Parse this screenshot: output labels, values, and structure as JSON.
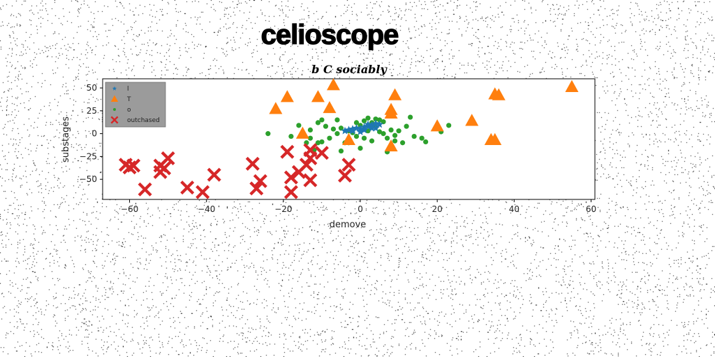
{
  "chart_data": {
    "type": "scatter",
    "title": "celioscope",
    "subtitle": "b C sociably",
    "xlabel": "demove",
    "ylabel": "substages",
    "xlim": [
      -67,
      61
    ],
    "ylim": [
      -72,
      60
    ],
    "x_ticks": [
      -60,
      -40,
      -20,
      0,
      20,
      40,
      60
    ],
    "y_ticks": [
      -50,
      -25,
      0,
      25,
      50
    ],
    "x_tick_labels": [
      "−60",
      "−40",
      "−20",
      "0",
      "20",
      "40",
      "60"
    ],
    "y_tick_labels": [
      "−50",
      "−25",
      "0",
      "25",
      "50"
    ],
    "grid": false,
    "legend_position": "top-left",
    "series": [
      {
        "name": "l",
        "marker": "star",
        "color": "#1f77b4",
        "points": [
          [
            -4,
            3
          ],
          [
            -3,
            4
          ],
          [
            -2,
            5
          ],
          [
            -1,
            6
          ],
          [
            0,
            5
          ],
          [
            1,
            7
          ],
          [
            2,
            8
          ],
          [
            3,
            9
          ],
          [
            4,
            11
          ],
          [
            5,
            10
          ],
          [
            -2,
            3
          ],
          [
            1,
            4
          ],
          [
            2,
            10
          ],
          [
            3,
            6
          ],
          [
            0,
            2
          ],
          [
            4,
            6
          ]
        ]
      },
      {
        "name": "T",
        "marker": "triangle",
        "color": "#ff7f0e",
        "points": [
          [
            -19,
            40
          ],
          [
            -11,
            40
          ],
          [
            -7,
            53
          ],
          [
            9,
            42
          ],
          [
            35,
            43
          ],
          [
            36,
            42
          ],
          [
            55,
            51
          ],
          [
            -22,
            27
          ],
          [
            -8,
            28
          ],
          [
            8,
            26
          ],
          [
            8,
            22
          ],
          [
            -15,
            0
          ],
          [
            -3,
            -7
          ],
          [
            8,
            -14
          ],
          [
            20,
            8
          ],
          [
            29,
            14
          ],
          [
            34,
            -7
          ],
          [
            35,
            -7
          ]
        ]
      },
      {
        "name": "o",
        "marker": "circle",
        "color": "#2ca02c",
        "points": [
          [
            -24,
            0
          ],
          [
            -16,
            9
          ],
          [
            -13,
            4
          ],
          [
            -11,
            12
          ],
          [
            -10,
            15
          ],
          [
            -9,
            8
          ],
          [
            -7,
            5
          ],
          [
            -6,
            15
          ],
          [
            -5,
            6
          ],
          [
            -3,
            3
          ],
          [
            -2,
            1
          ],
          [
            -1,
            -3
          ],
          [
            0,
            9
          ],
          [
            1,
            -5
          ],
          [
            2,
            3
          ],
          [
            3,
            12
          ],
          [
            4,
            7
          ],
          [
            5,
            2
          ],
          [
            6,
            0
          ],
          [
            7,
            -5
          ],
          [
            8,
            4
          ],
          [
            9,
            -8
          ],
          [
            10,
            3
          ],
          [
            12,
            8
          ],
          [
            13,
            18
          ],
          [
            -4,
            -10
          ],
          [
            -8,
            -5
          ],
          [
            -12,
            -18
          ],
          [
            -14,
            -10
          ],
          [
            -6,
            0
          ],
          [
            0,
            -16
          ],
          [
            2,
            17
          ],
          [
            4,
            16
          ],
          [
            6,
            13
          ],
          [
            7,
            -20
          ],
          [
            9,
            -2
          ],
          [
            11,
            -10
          ],
          [
            14,
            -3
          ],
          [
            16,
            -5
          ],
          [
            17,
            -9
          ],
          [
            21,
            2
          ],
          [
            23,
            9
          ],
          [
            -3,
            -10
          ],
          [
            -1,
            12
          ],
          [
            1,
            14
          ],
          [
            3,
            -8
          ],
          [
            5,
            15
          ],
          [
            -10,
            -9
          ],
          [
            -11,
            -10
          ],
          [
            -13,
            -5
          ],
          [
            -18,
            -3
          ],
          [
            -5,
            -19
          ]
        ]
      },
      {
        "name": "outchased",
        "marker": "x",
        "color": "#d62728",
        "points": [
          [
            -61,
            -34
          ],
          [
            -60,
            -37
          ],
          [
            -59,
            -35
          ],
          [
            -56,
            -61
          ],
          [
            -52,
            -35
          ],
          [
            -52,
            -42
          ],
          [
            -51,
            -38
          ],
          [
            -50,
            -27
          ],
          [
            -45,
            -59
          ],
          [
            -41,
            -64
          ],
          [
            -38,
            -45
          ],
          [
            -28,
            -33
          ],
          [
            -27,
            -60
          ],
          [
            -26,
            -52
          ],
          [
            -19,
            -20
          ],
          [
            -18,
            -48
          ],
          [
            -18,
            -64
          ],
          [
            -16,
            -42
          ],
          [
            -14,
            -34
          ],
          [
            -13,
            -51
          ],
          [
            -13,
            -18
          ],
          [
            -13,
            -27
          ],
          [
            -10,
            -21
          ],
          [
            -4,
            -46
          ],
          [
            -3,
            -34
          ]
        ]
      }
    ]
  }
}
